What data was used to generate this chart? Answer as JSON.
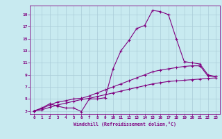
{
  "xlabel": "Windchill (Refroidissement éolien,°C)",
  "bg_color": "#c8eaf0",
  "line_color": "#800080",
  "grid_color": "#aaccd8",
  "xlim": [
    -0.5,
    23.5
  ],
  "ylim": [
    2.5,
    20.5
  ],
  "xticks": [
    0,
    1,
    2,
    3,
    4,
    5,
    6,
    7,
    8,
    9,
    10,
    11,
    12,
    13,
    14,
    15,
    16,
    17,
    18,
    19,
    20,
    21,
    22,
    23
  ],
  "yticks": [
    3,
    5,
    7,
    9,
    11,
    13,
    15,
    17,
    19
  ],
  "line1_x": [
    0,
    1,
    2,
    3,
    4,
    5,
    6,
    7,
    8,
    9,
    10,
    11,
    12,
    13,
    14,
    15,
    16,
    17,
    18,
    19,
    20,
    21,
    22,
    23
  ],
  "line1_y": [
    3.0,
    3.5,
    4.2,
    3.8,
    3.5,
    3.5,
    2.9,
    5.0,
    5.0,
    5.2,
    10.0,
    13.0,
    14.7,
    16.7,
    17.2,
    19.7,
    19.5,
    19.0,
    15.0,
    11.2,
    11.0,
    10.8,
    9.0,
    8.7
  ],
  "line2_x": [
    0,
    1,
    2,
    3,
    4,
    5,
    6,
    7,
    8,
    9,
    10,
    11,
    12,
    13,
    14,
    15,
    16,
    17,
    18,
    19,
    20,
    21,
    22,
    23
  ],
  "line2_y": [
    3.0,
    3.4,
    4.0,
    4.5,
    4.7,
    5.0,
    5.1,
    5.5,
    6.0,
    6.5,
    7.0,
    7.5,
    8.0,
    8.5,
    9.0,
    9.5,
    9.8,
    10.0,
    10.2,
    10.4,
    10.5,
    10.5,
    8.8,
    8.7
  ],
  "line3_x": [
    0,
    1,
    2,
    3,
    4,
    5,
    6,
    7,
    8,
    9,
    10,
    11,
    12,
    13,
    14,
    15,
    16,
    17,
    18,
    19,
    20,
    21,
    22,
    23
  ],
  "line3_y": [
    3.0,
    3.2,
    3.6,
    4.0,
    4.3,
    4.6,
    4.9,
    5.1,
    5.4,
    5.7,
    6.0,
    6.3,
    6.6,
    6.9,
    7.2,
    7.5,
    7.7,
    7.9,
    8.0,
    8.1,
    8.2,
    8.3,
    8.4,
    8.5
  ]
}
